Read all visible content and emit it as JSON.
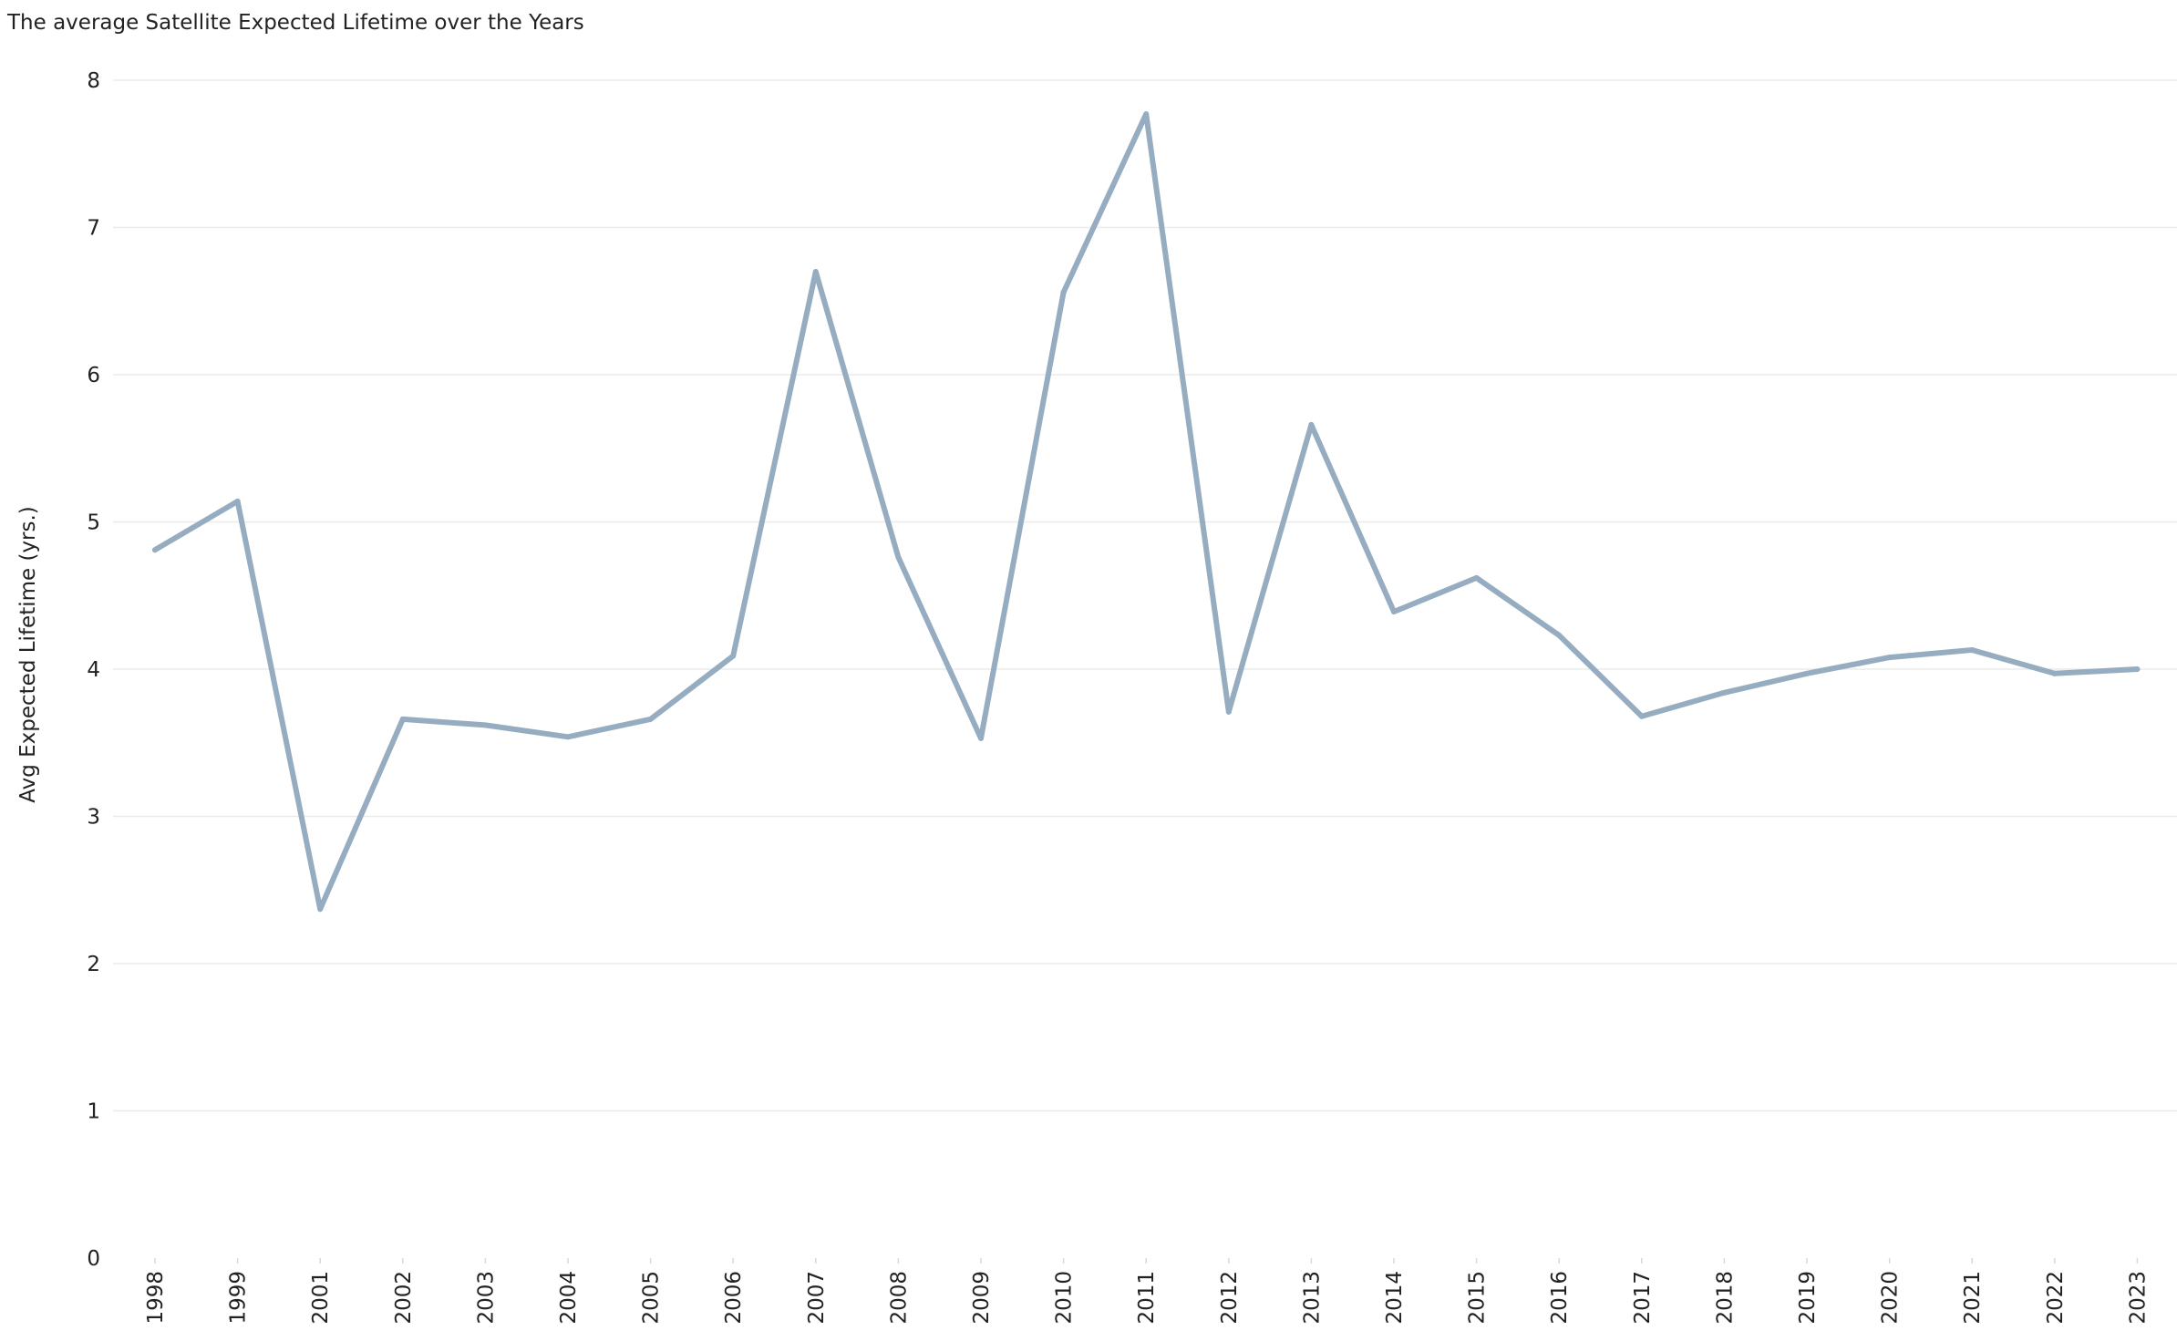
{
  "chart_data": {
    "type": "line",
    "title": "The average Satellite Expected Lifetime over the Years",
    "xlabel": "",
    "ylabel": "Avg Expected Lifetime (yrs.)",
    "ylim": [
      0,
      8
    ],
    "yticks": [
      0,
      1,
      2,
      3,
      4,
      5,
      6,
      7,
      8
    ],
    "grid": true,
    "categories": [
      "1998",
      "1999",
      "2001",
      "2002",
      "2003",
      "2004",
      "2005",
      "2006",
      "2007",
      "2008",
      "2009",
      "2010",
      "2011",
      "2012",
      "2013",
      "2014",
      "2015",
      "2016",
      "2017",
      "2018",
      "2019",
      "2020",
      "2021",
      "2022",
      "2023"
    ],
    "series": [
      {
        "values": [
          4.81,
          5.14,
          2.37,
          3.66,
          3.62,
          3.54,
          3.66,
          4.09,
          6.7,
          4.76,
          3.53,
          6.56,
          7.77,
          3.71,
          5.66,
          4.39,
          4.62,
          4.23,
          3.68,
          3.84,
          3.97,
          4.08,
          4.13,
          3.97,
          4.0
        ],
        "color": "#96adc1"
      }
    ],
    "gridColor": "#ebebeb"
  }
}
